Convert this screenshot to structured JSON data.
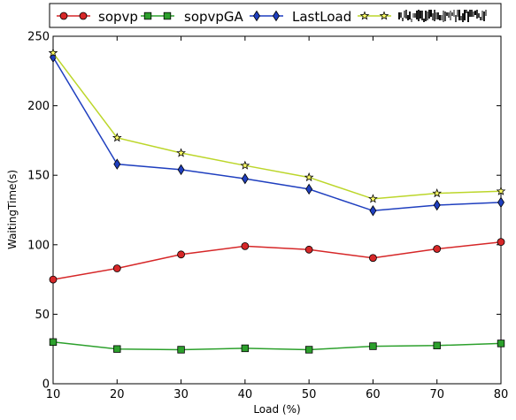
{
  "chart_data": {
    "type": "line",
    "xlabel": "Load (%)",
    "ylabel": "WaitingTime(s)",
    "xlim": [
      10,
      80
    ],
    "ylim": [
      0,
      250
    ],
    "xticks": [
      "10",
      "20",
      "30",
      "40",
      "50",
      "60",
      "70",
      "80"
    ],
    "yticks": [
      "0",
      "50",
      "100",
      "150",
      "200",
      "250"
    ],
    "grid": false,
    "legend_position": "top",
    "x": [
      10,
      20,
      30,
      40,
      50,
      60,
      70,
      80
    ],
    "series": [
      {
        "name": "sopvp",
        "color": "#d62728",
        "marker": "circle",
        "values": [
          75,
          83,
          93,
          99,
          96.5,
          90.5,
          97,
          102
        ]
      },
      {
        "name": "sopvpGA",
        "color": "#2ca02c",
        "marker": "square",
        "values": [
          30,
          25,
          24.5,
          25.5,
          24.5,
          27,
          27.5,
          29
        ]
      },
      {
        "name": "LastLoad",
        "color": "#1f3fbf",
        "marker": "diamond",
        "values": [
          235,
          158,
          154,
          147.5,
          140,
          124.5,
          128.5,
          130.5
        ]
      },
      {
        "name": "",
        "color": "#bcd62a",
        "marker": "star",
        "values": [
          238,
          177,
          166,
          157,
          148.5,
          133,
          137,
          138.5
        ]
      }
    ]
  }
}
